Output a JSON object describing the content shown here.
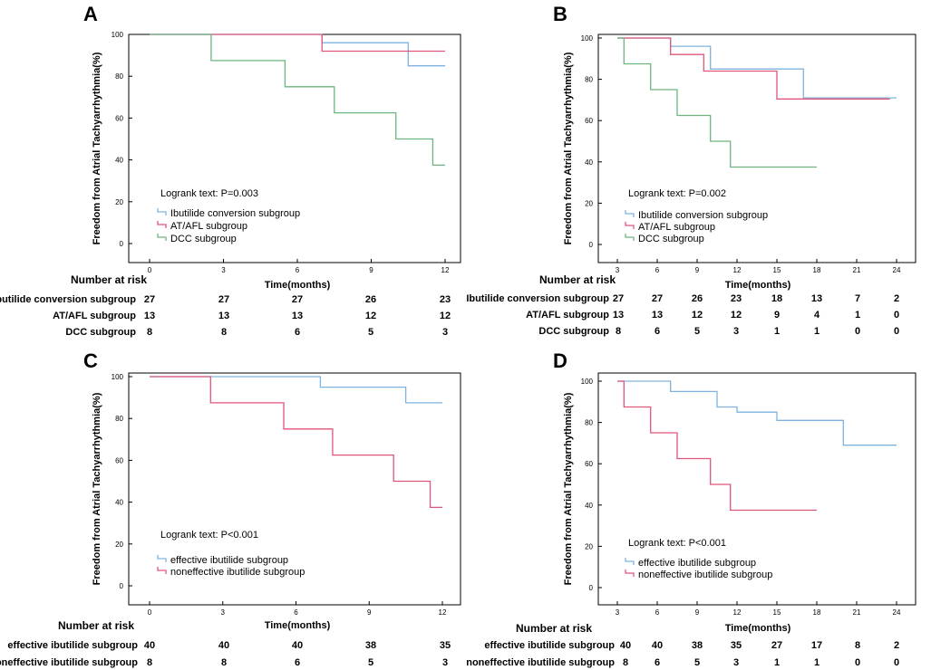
{
  "colors": {
    "blue": "#7fb3df",
    "red": "#e0557a",
    "green": "#6db57f",
    "axis": "#000000"
  },
  "chart_data": [
    {
      "panel": "A",
      "type": "line",
      "step": true,
      "ylabel": "Freedom from Atrial Tachyarrhythmia(%)",
      "xlabel": "Time(months)",
      "xticks": [
        "0",
        "3",
        "6",
        "9",
        "12"
      ],
      "yticks": [
        "0",
        "20",
        "40",
        "60",
        "80",
        "100"
      ],
      "xlim": [
        0,
        12
      ],
      "ylim": [
        0,
        100
      ],
      "logrank": "Logrank text: P=0.003",
      "series": [
        {
          "name": "Ibutilide conversion subgroup",
          "color": "#7fb3df",
          "points": [
            [
              0,
              100
            ],
            [
              7,
              100
            ],
            [
              7,
              96
            ],
            [
              10.5,
              96
            ],
            [
              10.5,
              85
            ],
            [
              12,
              85
            ]
          ]
        },
        {
          "name": "AT/AFL subgroup",
          "color": "#e0557a",
          "points": [
            [
              0,
              100
            ],
            [
              7,
              100
            ],
            [
              7,
              92
            ],
            [
              12,
              92
            ]
          ]
        },
        {
          "name": "DCC subgroup",
          "color": "#6db57f",
          "points": [
            [
              0,
              100
            ],
            [
              2.5,
              100
            ],
            [
              2.5,
              87.5
            ],
            [
              5.5,
              87.5
            ],
            [
              5.5,
              75
            ],
            [
              7.5,
              75
            ],
            [
              7.5,
              62.5
            ],
            [
              10,
              62.5
            ],
            [
              10,
              50
            ],
            [
              11.5,
              50
            ],
            [
              11.5,
              37.5
            ],
            [
              12,
              37.5
            ]
          ]
        }
      ],
      "risk": {
        "title": "Number at risk",
        "rows": [
          {
            "name": "Ibutilide conversion subgroup",
            "values": [
              "27",
              "27",
              "27",
              "26",
              "23"
            ]
          },
          {
            "name": "AT/AFL subgroup",
            "values": [
              "13",
              "13",
              "13",
              "12",
              "12"
            ]
          },
          {
            "name": "DCC subgroup",
            "values": [
              "8",
              "8",
              "6",
              "5",
              "3"
            ]
          }
        ]
      }
    },
    {
      "panel": "B",
      "type": "line",
      "step": true,
      "ylabel": "Freedom from Atrial Tachyarrhythmia(%)",
      "xlabel": "Time(months)",
      "xticks": [
        "3",
        "6",
        "9",
        "12",
        "15",
        "18",
        "21",
        "24"
      ],
      "yticks": [
        "0",
        "20",
        "40",
        "60",
        "80",
        "100"
      ],
      "xlim": [
        3,
        24
      ],
      "ylim": [
        0,
        100
      ],
      "logrank": "Logrank text: P=0.002",
      "series": [
        {
          "name": "Ibutilide conversion subgroup",
          "color": "#7fb3df",
          "points": [
            [
              3,
              100
            ],
            [
              7,
              100
            ],
            [
              7,
              96
            ],
            [
              10,
              96
            ],
            [
              10,
              85
            ],
            [
              17,
              85
            ],
            [
              17,
              71
            ],
            [
              24,
              71
            ]
          ]
        },
        {
          "name": "AT/AFL subgroup",
          "color": "#e0557a",
          "points": [
            [
              3,
              100
            ],
            [
              7,
              100
            ],
            [
              7,
              92
            ],
            [
              9.5,
              92
            ],
            [
              9.5,
              84
            ],
            [
              15,
              84
            ],
            [
              15,
              70.5
            ],
            [
              23.5,
              70.5
            ]
          ]
        },
        {
          "name": "DCC subgroup",
          "color": "#6db57f",
          "points": [
            [
              3,
              100
            ],
            [
              3.5,
              100
            ],
            [
              3.5,
              87.5
            ],
            [
              5.5,
              87.5
            ],
            [
              5.5,
              75
            ],
            [
              7.5,
              75
            ],
            [
              7.5,
              62.5
            ],
            [
              10,
              62.5
            ],
            [
              10,
              50
            ],
            [
              11.5,
              50
            ],
            [
              11.5,
              37.5
            ],
            [
              18,
              37.5
            ]
          ]
        }
      ],
      "risk": {
        "title": "Number at risk",
        "rows": [
          {
            "name": "Ibutilide conversion subgroup",
            "values": [
              "27",
              "27",
              "26",
              "23",
              "18",
              "13",
              "7",
              "2"
            ]
          },
          {
            "name": "AT/AFL subgroup",
            "values": [
              "13",
              "13",
              "12",
              "12",
              "9",
              "4",
              "1",
              "0"
            ]
          },
          {
            "name": "DCC subgroup",
            "values": [
              "8",
              "6",
              "5",
              "3",
              "1",
              "1",
              "0",
              "0"
            ]
          }
        ]
      }
    },
    {
      "panel": "C",
      "type": "line",
      "step": true,
      "ylabel": "Freedom from Atrial Tachyarrhythmia(%)",
      "xlabel": "Time(months)",
      "xticks": [
        "0",
        "3",
        "6",
        "9",
        "12"
      ],
      "yticks": [
        "0",
        "20",
        "40",
        "60",
        "80",
        "100"
      ],
      "xlim": [
        0,
        12
      ],
      "ylim": [
        0,
        100
      ],
      "logrank": "Logrank text: P<0.001",
      "series": [
        {
          "name": "effective ibutilide subgroup",
          "color": "#7fb3df",
          "points": [
            [
              0,
              100
            ],
            [
              7,
              100
            ],
            [
              7,
              95
            ],
            [
              10.5,
              95
            ],
            [
              10.5,
              87.5
            ],
            [
              12,
              87.5
            ]
          ]
        },
        {
          "name": "noneffective ibutilide subgroup",
          "color": "#e0557a",
          "points": [
            [
              0,
              100
            ],
            [
              2.5,
              100
            ],
            [
              2.5,
              87.5
            ],
            [
              5.5,
              87.5
            ],
            [
              5.5,
              75
            ],
            [
              7.5,
              75
            ],
            [
              7.5,
              62.5
            ],
            [
              10,
              62.5
            ],
            [
              10,
              50
            ],
            [
              11.5,
              50
            ],
            [
              11.5,
              37.5
            ],
            [
              12,
              37.5
            ]
          ]
        }
      ],
      "risk": {
        "title": "Number at risk",
        "rows": [
          {
            "name": "effective ibutilide  subgroup",
            "values": [
              "40",
              "40",
              "40",
              "38",
              "35"
            ]
          },
          {
            "name": "noneffective ibutilide subgroup",
            "values": [
              "8",
              "8",
              "6",
              "5",
              "3"
            ]
          }
        ]
      }
    },
    {
      "panel": "D",
      "type": "line",
      "step": true,
      "ylabel": "Freedom from Atrial Tachyarrhythmia(%)",
      "xlabel": "Time(months)",
      "xticks": [
        "3",
        "6",
        "9",
        "12",
        "15",
        "18",
        "21",
        "24"
      ],
      "yticks": [
        "0",
        "20",
        "40",
        "60",
        "80",
        "100"
      ],
      "xlim": [
        3,
        24
      ],
      "ylim": [
        0,
        100
      ],
      "logrank": "Logrank text: P<0.001",
      "series": [
        {
          "name": "effective ibutilide subgroup",
          "color": "#7fb3df",
          "points": [
            [
              3,
              100
            ],
            [
              7,
              100
            ],
            [
              7,
              95
            ],
            [
              10.5,
              95
            ],
            [
              10.5,
              87.5
            ],
            [
              12,
              87.5
            ],
            [
              12,
              85
            ],
            [
              15,
              85
            ],
            [
              15,
              81
            ],
            [
              20,
              81
            ],
            [
              20,
              69
            ],
            [
              24,
              69
            ]
          ]
        },
        {
          "name": "noneffective ibutilide subgroup",
          "color": "#e0557a",
          "points": [
            [
              3,
              100
            ],
            [
              3.5,
              100
            ],
            [
              3.5,
              87.5
            ],
            [
              5.5,
              87.5
            ],
            [
              5.5,
              75
            ],
            [
              7.5,
              75
            ],
            [
              7.5,
              62.5
            ],
            [
              10,
              62.5
            ],
            [
              10,
              50
            ],
            [
              11.5,
              50
            ],
            [
              11.5,
              37.5
            ],
            [
              18,
              37.5
            ]
          ]
        }
      ],
      "risk": {
        "title": "Number at risk",
        "rows": [
          {
            "name": "effective ibutilide  subgroup",
            "values": [
              "40",
              "40",
              "38",
              "35",
              "27",
              "17",
              "8",
              "2"
            ]
          },
          {
            "name": "noneffective ibutilide subgroup",
            "values": [
              "8",
              "6",
              "5",
              "3",
              "1",
              "1",
              "0",
              "0"
            ]
          }
        ]
      }
    }
  ]
}
